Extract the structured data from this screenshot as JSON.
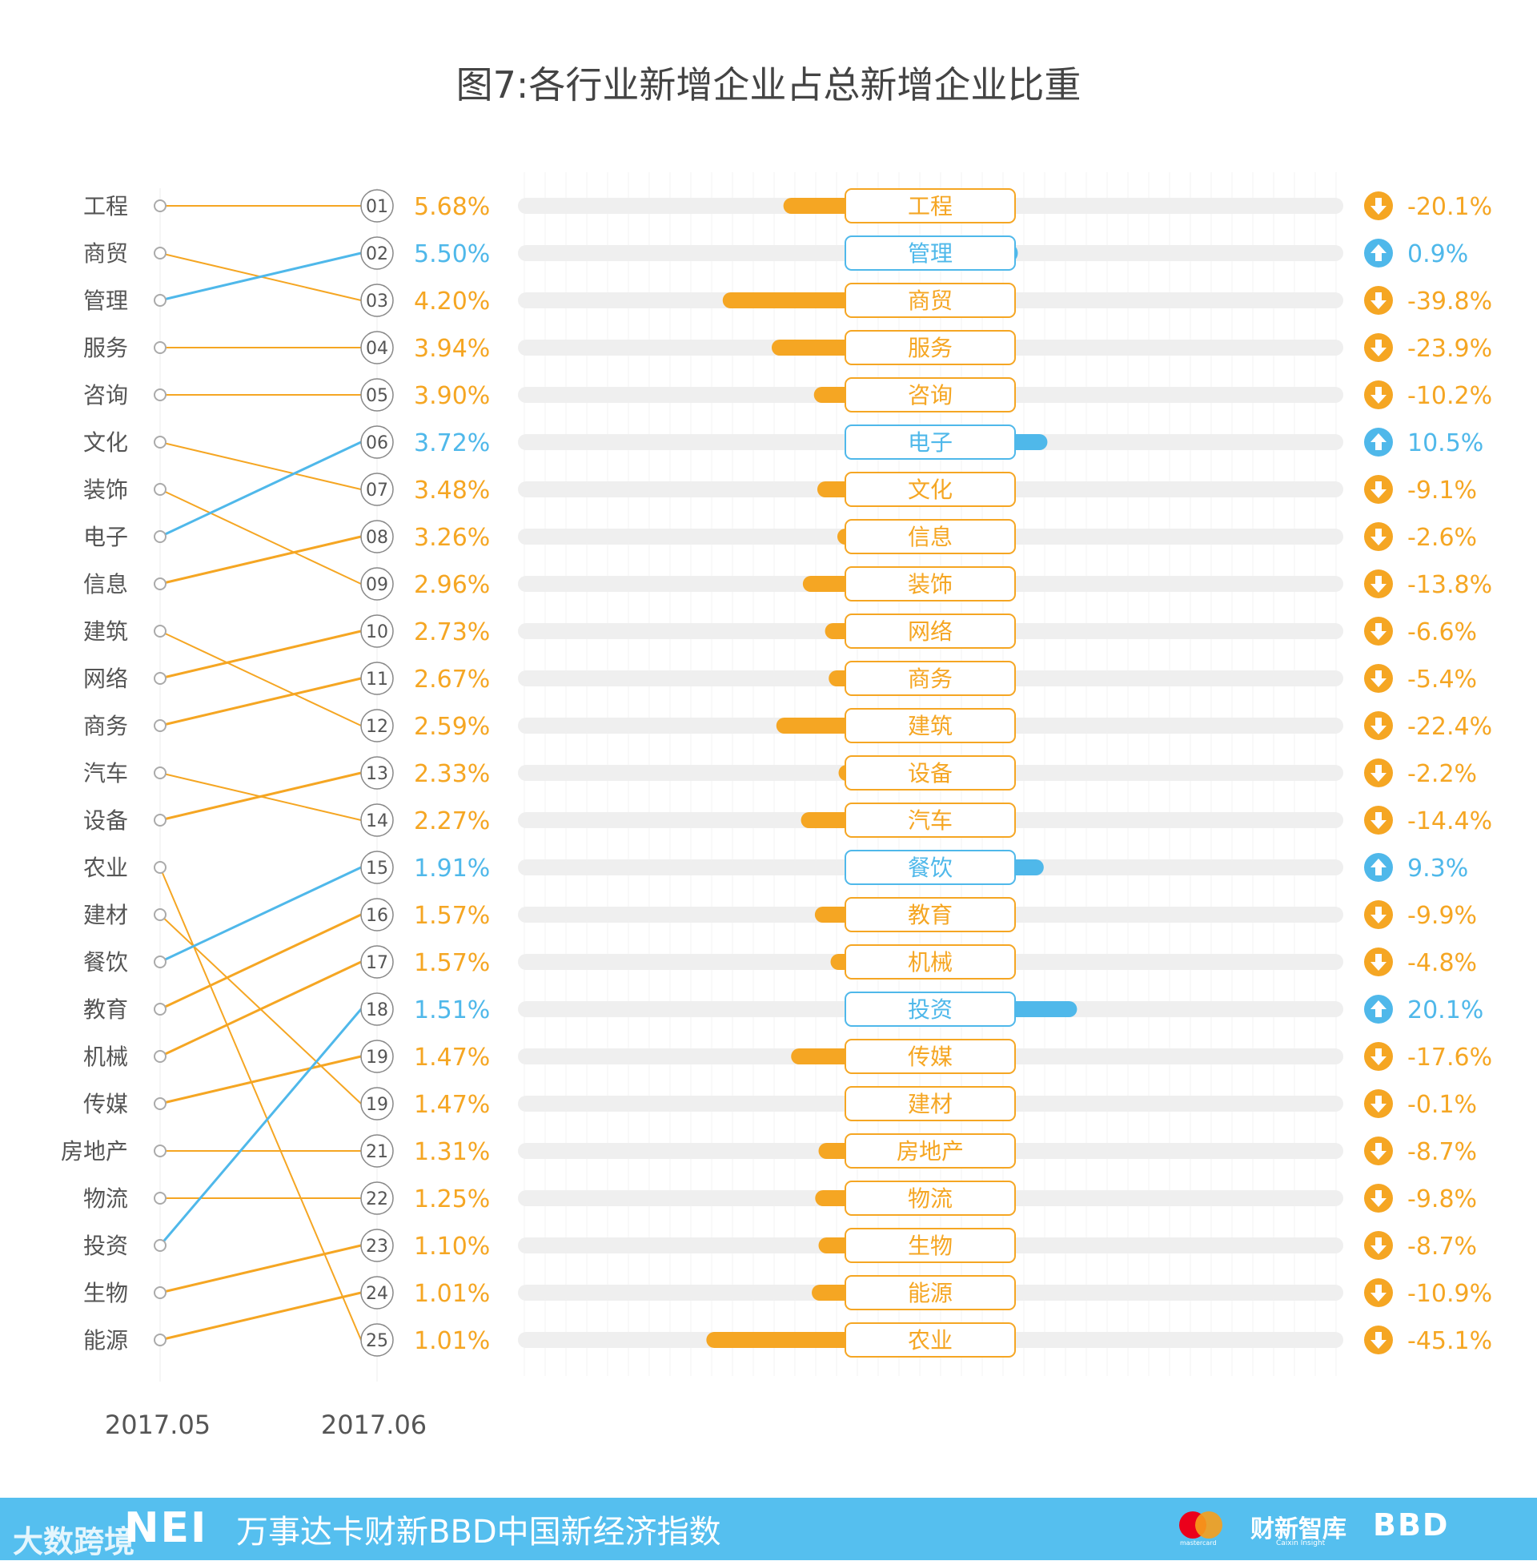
{
  "chart_data": {
    "type": "bar",
    "title": "图7:各行业新增企业占总新增企业比重",
    "x_labels": [
      "2017.05",
      "2017.06"
    ],
    "rank_labels": [
      "01",
      "02",
      "03",
      "04",
      "05",
      "06",
      "07",
      "08",
      "09",
      "10",
      "11",
      "12",
      "13",
      "14",
      "15",
      "16",
      "17",
      "18",
      "19",
      "19",
      "21",
      "22",
      "23",
      "24",
      "25"
    ],
    "may_order": [
      "工程",
      "商贸",
      "管理",
      "服务",
      "咨询",
      "文化",
      "装饰",
      "电子",
      "信息",
      "建筑",
      "网络",
      "商务",
      "汽车",
      "设备",
      "农业",
      "建材",
      "餐饮",
      "教育",
      "机械",
      "传媒",
      "房地产",
      "物流",
      "投资",
      "生物",
      "能源"
    ],
    "june_order": [
      "工程",
      "管理",
      "商贸",
      "服务",
      "咨询",
      "电子",
      "文化",
      "信息",
      "装饰",
      "网络",
      "商务",
      "建筑",
      "设备",
      "汽车",
      "餐饮",
      "教育",
      "机械",
      "投资",
      "传媒",
      "建材",
      "房地产",
      "物流",
      "生物",
      "能源",
      "农业"
    ],
    "june_share_labels": [
      "5.68%",
      "5.50%",
      "4.20%",
      "3.94%",
      "3.90%",
      "3.72%",
      "3.48%",
      "3.26%",
      "2.96%",
      "2.73%",
      "2.67%",
      "2.59%",
      "2.33%",
      "2.27%",
      "1.91%",
      "1.57%",
      "1.57%",
      "1.51%",
      "1.47%",
      "1.47%",
      "1.31%",
      "1.25%",
      "1.10%",
      "1.01%",
      "1.01%"
    ],
    "june_share_values": [
      5.68,
      5.5,
      4.2,
      3.94,
      3.9,
      3.72,
      3.48,
      3.26,
      2.96,
      2.73,
      2.67,
      2.59,
      2.33,
      2.27,
      1.91,
      1.57,
      1.57,
      1.51,
      1.47,
      1.47,
      1.31,
      1.25,
      1.1,
      1.01,
      1.01
    ],
    "change_labels": [
      "-20.1%",
      "0.9%",
      "-39.8%",
      "-23.9%",
      "-10.2%",
      "10.5%",
      "-9.1%",
      "-2.6%",
      "-13.8%",
      "-6.6%",
      "-5.4%",
      "-22.4%",
      "-2.2%",
      "-14.4%",
      "9.3%",
      "-9.9%",
      "-4.8%",
      "20.1%",
      "-17.6%",
      "-0.1%",
      "-8.7%",
      "-9.8%",
      "-8.7%",
      "-10.9%",
      "-45.1%"
    ],
    "change_values": [
      -20.1,
      0.9,
      -39.8,
      -23.9,
      -10.2,
      10.5,
      -9.1,
      -2.6,
      -13.8,
      -6.6,
      -5.4,
      -22.4,
      -2.2,
      -14.4,
      9.3,
      -9.9,
      -4.8,
      20.1,
      -17.6,
      -0.1,
      -8.7,
      -9.8,
      -8.7,
      -10.9,
      -45.1
    ],
    "colors": {
      "down": "#f5a623",
      "up": "#4fb8ea",
      "track": "#efefef",
      "grid": "#f3f3f3",
      "dot": "#aaaaaa"
    }
  },
  "footer": {
    "title": "万事达卡财新BBD中国新经济指数",
    "nei_logo": "NEI",
    "watermark": "大数跨境",
    "caixin": "财新智库",
    "caixin_sub": "Caixin Insight",
    "bbd": "BBD",
    "mastercard_sub": "mastercard",
    "mastercard_icon": "mastercard-logo-icon"
  }
}
